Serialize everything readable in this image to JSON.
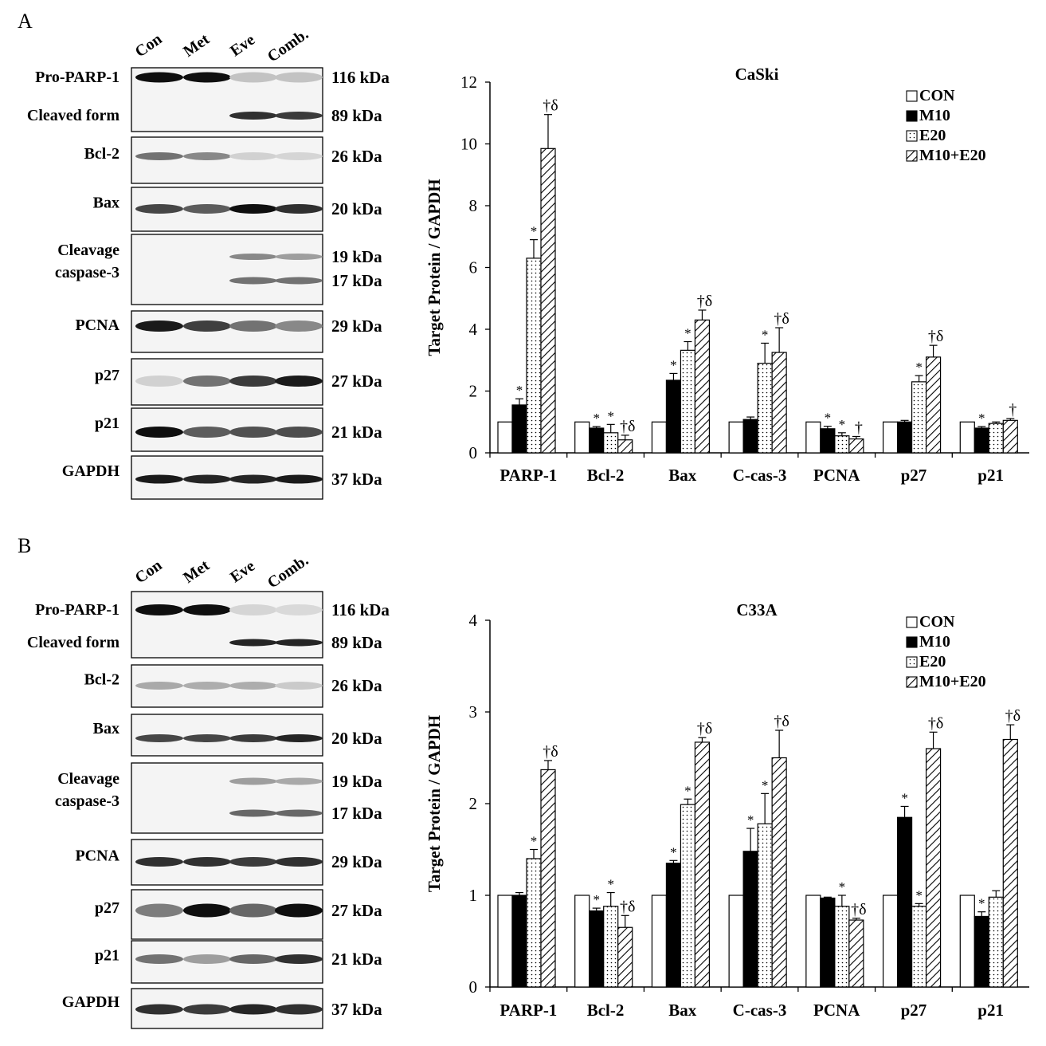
{
  "panels": [
    {
      "label": "A",
      "blot": {
        "lanes": [
          "Con",
          "Met",
          "Eve",
          "Comb."
        ],
        "rows": [
          {
            "labels": [
              "Pro-PARP-1",
              "Cleaved form"
            ],
            "kda": [
              "116 kDa",
              "89 kDa"
            ]
          },
          {
            "labels": [
              "Bcl-2"
            ],
            "kda": [
              "26 kDa"
            ]
          },
          {
            "labels": [
              "Bax"
            ],
            "kda": [
              "20 kDa"
            ]
          },
          {
            "labels": [
              "Cleavage",
              "caspase-3"
            ],
            "kda": [
              "19 kDa",
              "17 kDa"
            ]
          },
          {
            "labels": [
              "PCNA"
            ],
            "kda": [
              "29 kDa"
            ]
          },
          {
            "labels": [
              "p27"
            ],
            "kda": [
              "27 kDa"
            ]
          },
          {
            "labels": [
              "p21"
            ],
            "kda": [
              "21 kDa"
            ]
          },
          {
            "labels": [
              "GAPDH"
            ],
            "kda": [
              "37 kDa"
            ]
          }
        ]
      }
    },
    {
      "label": "B",
      "blot": {
        "lanes": [
          "Con",
          "Met",
          "Eve",
          "Comb."
        ],
        "rows": [
          {
            "labels": [
              "Pro-PARP-1",
              "Cleaved form"
            ],
            "kda": [
              "116 kDa",
              "89 kDa"
            ]
          },
          {
            "labels": [
              "Bcl-2"
            ],
            "kda": [
              "26 kDa"
            ]
          },
          {
            "labels": [
              "Bax"
            ],
            "kda": [
              "20 kDa"
            ]
          },
          {
            "labels": [
              "Cleavage",
              "caspase-3"
            ],
            "kda": [
              "19 kDa",
              "17 kDa"
            ]
          },
          {
            "labels": [
              "PCNA"
            ],
            "kda": [
              "29 kDa"
            ]
          },
          {
            "labels": [
              "p27"
            ],
            "kda": [
              "27 kDa"
            ]
          },
          {
            "labels": [
              "p21"
            ],
            "kda": [
              "21 kDa"
            ]
          },
          {
            "labels": [
              "GAPDH"
            ],
            "kda": [
              "37 kDa"
            ]
          }
        ]
      }
    }
  ],
  "chart_data": [
    {
      "type": "bar",
      "title": "CaSki",
      "ylabel": "Target Protein / GAPDH",
      "xlabel": "",
      "ylim": [
        0,
        12
      ],
      "yticks": [
        0,
        2,
        4,
        6,
        8,
        10,
        12
      ],
      "legend_position": "top-right",
      "categories": [
        "PARP-1",
        "Bcl-2",
        "Bax",
        "C-cas-3",
        "PCNA",
        "p27",
        "p21"
      ],
      "series": [
        {
          "name": "CON",
          "pattern": "white",
          "values": [
            1,
            1,
            1,
            1,
            1,
            1,
            1
          ],
          "errors": [
            0,
            0,
            0,
            0,
            0,
            0,
            0
          ]
        },
        {
          "name": "M10",
          "pattern": "black",
          "values": [
            1.55,
            0.8,
            2.35,
            1.08,
            0.78,
            1.0,
            0.8
          ],
          "errors": [
            0.2,
            0.05,
            0.22,
            0.08,
            0.08,
            0.05,
            0.05
          ]
        },
        {
          "name": "E20",
          "pattern": "dotted",
          "values": [
            6.3,
            0.65,
            3.32,
            2.9,
            0.55,
            2.3,
            0.95
          ],
          "errors": [
            0.6,
            0.27,
            0.28,
            0.65,
            0.1,
            0.2,
            0.05
          ]
        },
        {
          "name": "M10+E20",
          "pattern": "hatched",
          "values": [
            9.85,
            0.42,
            4.3,
            3.25,
            0.45,
            3.1,
            1.05
          ],
          "errors": [
            1.1,
            0.15,
            0.32,
            0.8,
            0.08,
            0.38,
            0.06
          ]
        }
      ],
      "annotations": [
        [
          "",
          "*",
          "*",
          "†δ"
        ],
        [
          "",
          "*",
          "*",
          "†δ"
        ],
        [
          "",
          "*",
          "*",
          "†δ"
        ],
        [
          "",
          "",
          "*",
          "†δ"
        ],
        [
          "",
          "*",
          "*",
          "†"
        ],
        [
          "",
          "",
          "*",
          "†δ"
        ],
        [
          "",
          "*",
          "",
          "†"
        ]
      ]
    },
    {
      "type": "bar",
      "title": "C33A",
      "ylabel": "Target Protein / GAPDH",
      "xlabel": "",
      "ylim": [
        0,
        4
      ],
      "yticks": [
        0,
        1,
        2,
        3,
        4
      ],
      "legend_position": "top-right",
      "categories": [
        "PARP-1",
        "Bcl-2",
        "Bax",
        "C-cas-3",
        "PCNA",
        "p27",
        "p21"
      ],
      "series": [
        {
          "name": "CON",
          "pattern": "white",
          "values": [
            1,
            1,
            1,
            1,
            1,
            1,
            1
          ],
          "errors": [
            0,
            0,
            0,
            0,
            0,
            0,
            0
          ]
        },
        {
          "name": "M10",
          "pattern": "black",
          "values": [
            1.0,
            0.83,
            1.35,
            1.48,
            0.97,
            1.85,
            0.77
          ],
          "errors": [
            0.03,
            0.03,
            0.03,
            0.25,
            0.01,
            0.12,
            0.05
          ]
        },
        {
          "name": "E20",
          "pattern": "dotted",
          "values": [
            1.4,
            0.88,
            1.99,
            1.78,
            0.88,
            0.88,
            0.98
          ],
          "errors": [
            0.1,
            0.15,
            0.06,
            0.33,
            0.12,
            0.03,
            0.07
          ]
        },
        {
          "name": "M10+E20",
          "pattern": "hatched",
          "values": [
            2.37,
            0.65,
            2.67,
            2.5,
            0.73,
            2.6,
            2.7
          ],
          "errors": [
            0.1,
            0.13,
            0.05,
            0.3,
            0.02,
            0.18,
            0.16
          ]
        }
      ],
      "annotations": [
        [
          "",
          "",
          "*",
          "†δ"
        ],
        [
          "",
          "*",
          "*",
          "†δ"
        ],
        [
          "",
          "*",
          "*",
          "†δ"
        ],
        [
          "",
          "*",
          "*",
          "†δ"
        ],
        [
          "",
          "",
          "*",
          "†δ"
        ],
        [
          "",
          "*",
          "*",
          "†δ"
        ],
        [
          "",
          "*",
          "",
          "†δ"
        ]
      ]
    }
  ]
}
